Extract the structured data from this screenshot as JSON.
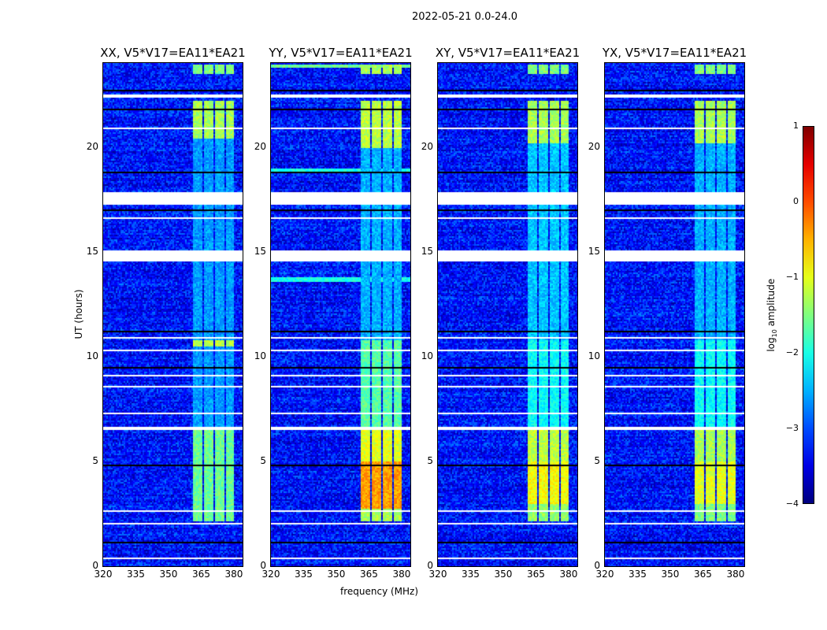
{
  "chart_data": {
    "type": "heatmap",
    "title": "2022-05-21 0.0-24.0",
    "xlabel": "frequency (MHz)",
    "ylabel": "UT (hours)",
    "xlim": [
      320,
      384
    ],
    "ylim": [
      0,
      24
    ],
    "xticks": [
      "320",
      "335",
      "350",
      "365",
      "380"
    ],
    "yticks": [
      "0",
      "5",
      "10",
      "15",
      "20"
    ],
    "colorbar": {
      "label": "log10 amplitude",
      "label_main": "log",
      "label_sub": "10",
      "label_rest": " amplitude",
      "range": [
        -4,
        1
      ],
      "ticks": [
        "1",
        "0",
        "−1",
        "−2",
        "−3",
        "−4"
      ],
      "colormap": "jet"
    },
    "background_level": -3.3,
    "flagged_white_hours": [
      [
        0.4,
        0.45
      ],
      [
        1.4,
        1.45
      ],
      [
        2.0,
        2.1
      ],
      [
        2.6,
        2.7
      ],
      [
        2.9,
        2.95
      ],
      [
        3.6,
        3.63
      ],
      [
        6.55,
        6.7
      ],
      [
        7.1,
        7.15
      ],
      [
        7.3,
        7.33
      ],
      [
        8.6,
        8.63
      ],
      [
        9.1,
        9.13
      ],
      [
        10.3,
        10.4
      ],
      [
        10.9,
        10.93
      ],
      [
        11.7,
        11.73
      ],
      [
        13.2,
        13.23
      ],
      [
        13.8,
        13.85
      ],
      [
        14.6,
        15.1
      ],
      [
        15.3,
        15.33
      ],
      [
        15.9,
        15.93
      ],
      [
        16.6,
        16.7
      ],
      [
        17.3,
        17.9
      ],
      [
        18.0,
        18.05
      ],
      [
        18.6,
        18.65
      ],
      [
        19.2,
        19.23
      ],
      [
        20.9,
        20.93
      ],
      [
        21.6,
        21.63
      ],
      [
        22.4,
        22.5
      ]
    ],
    "flagged_black_hours": [
      [
        1.15,
        1.2
      ],
      [
        1.7,
        1.73
      ],
      [
        2.55,
        2.58
      ],
      [
        3.0,
        3.03
      ],
      [
        4.8,
        4.85
      ],
      [
        9.5,
        9.55
      ],
      [
        10.5,
        10.55
      ],
      [
        11.2,
        11.25
      ],
      [
        13.6,
        13.63
      ],
      [
        16.3,
        16.33
      ],
      [
        17.0,
        17.03
      ],
      [
        18.8,
        18.85
      ],
      [
        19.0,
        19.03
      ],
      [
        21.8,
        21.83
      ],
      [
        22.7,
        22.73
      ],
      [
        23.1,
        23.13
      ],
      [
        23.4,
        23.43
      ],
      [
        23.8,
        23.83
      ]
    ],
    "rfi_subbands_mhz": [
      [
        361,
        365
      ],
      [
        366,
        370
      ],
      [
        371,
        375
      ],
      [
        376,
        380
      ]
    ],
    "panels": [
      {
        "title": "XX, V5*V17=EA11*EA21",
        "rfi": [
          [
            2.2,
            6.5,
            -1.6
          ],
          [
            10.5,
            10.8,
            -1.2
          ],
          [
            20.4,
            22.2,
            -1.3
          ],
          [
            23.5,
            24,
            -1.5
          ],
          [
            6.7,
            20.4,
            -2.6
          ]
        ]
      },
      {
        "title": "YY, V5*V17=EA11*EA21",
        "rfi": [
          [
            2.2,
            2.8,
            -1.3
          ],
          [
            2.8,
            5.0,
            -0.4
          ],
          [
            5.0,
            6.5,
            -1.0
          ],
          [
            6.7,
            10.8,
            -1.7
          ],
          [
            20.0,
            22.2,
            -1.2
          ],
          [
            23.5,
            24,
            -1.3
          ],
          [
            10.8,
            20.0,
            -2.5
          ]
        ],
        "extra_rows": [
          [
            13.6,
            13.8,
            -2.0
          ],
          [
            18.8,
            19.0,
            -2.0
          ],
          [
            23.8,
            24,
            -1.6
          ]
        ]
      },
      {
        "title": "XY, V5*V17=EA11*EA21",
        "rfi": [
          [
            2.2,
            3.0,
            -1.4
          ],
          [
            3.0,
            5.0,
            -0.9
          ],
          [
            5.0,
            6.5,
            -1.2
          ],
          [
            6.7,
            10.8,
            -2.1
          ],
          [
            20.2,
            22.2,
            -1.3
          ],
          [
            23.5,
            24,
            -1.5
          ],
          [
            10.8,
            20.2,
            -2.4
          ]
        ]
      },
      {
        "title": "YX, V5*V17=EA11*EA21",
        "rfi": [
          [
            2.2,
            3.0,
            -1.5
          ],
          [
            3.0,
            5.0,
            -1.0
          ],
          [
            5.0,
            6.5,
            -1.3
          ],
          [
            6.7,
            10.8,
            -2.1
          ],
          [
            20.2,
            22.2,
            -1.3
          ],
          [
            23.5,
            24,
            -1.5
          ],
          [
            10.8,
            20.2,
            -2.5
          ]
        ]
      }
    ]
  }
}
